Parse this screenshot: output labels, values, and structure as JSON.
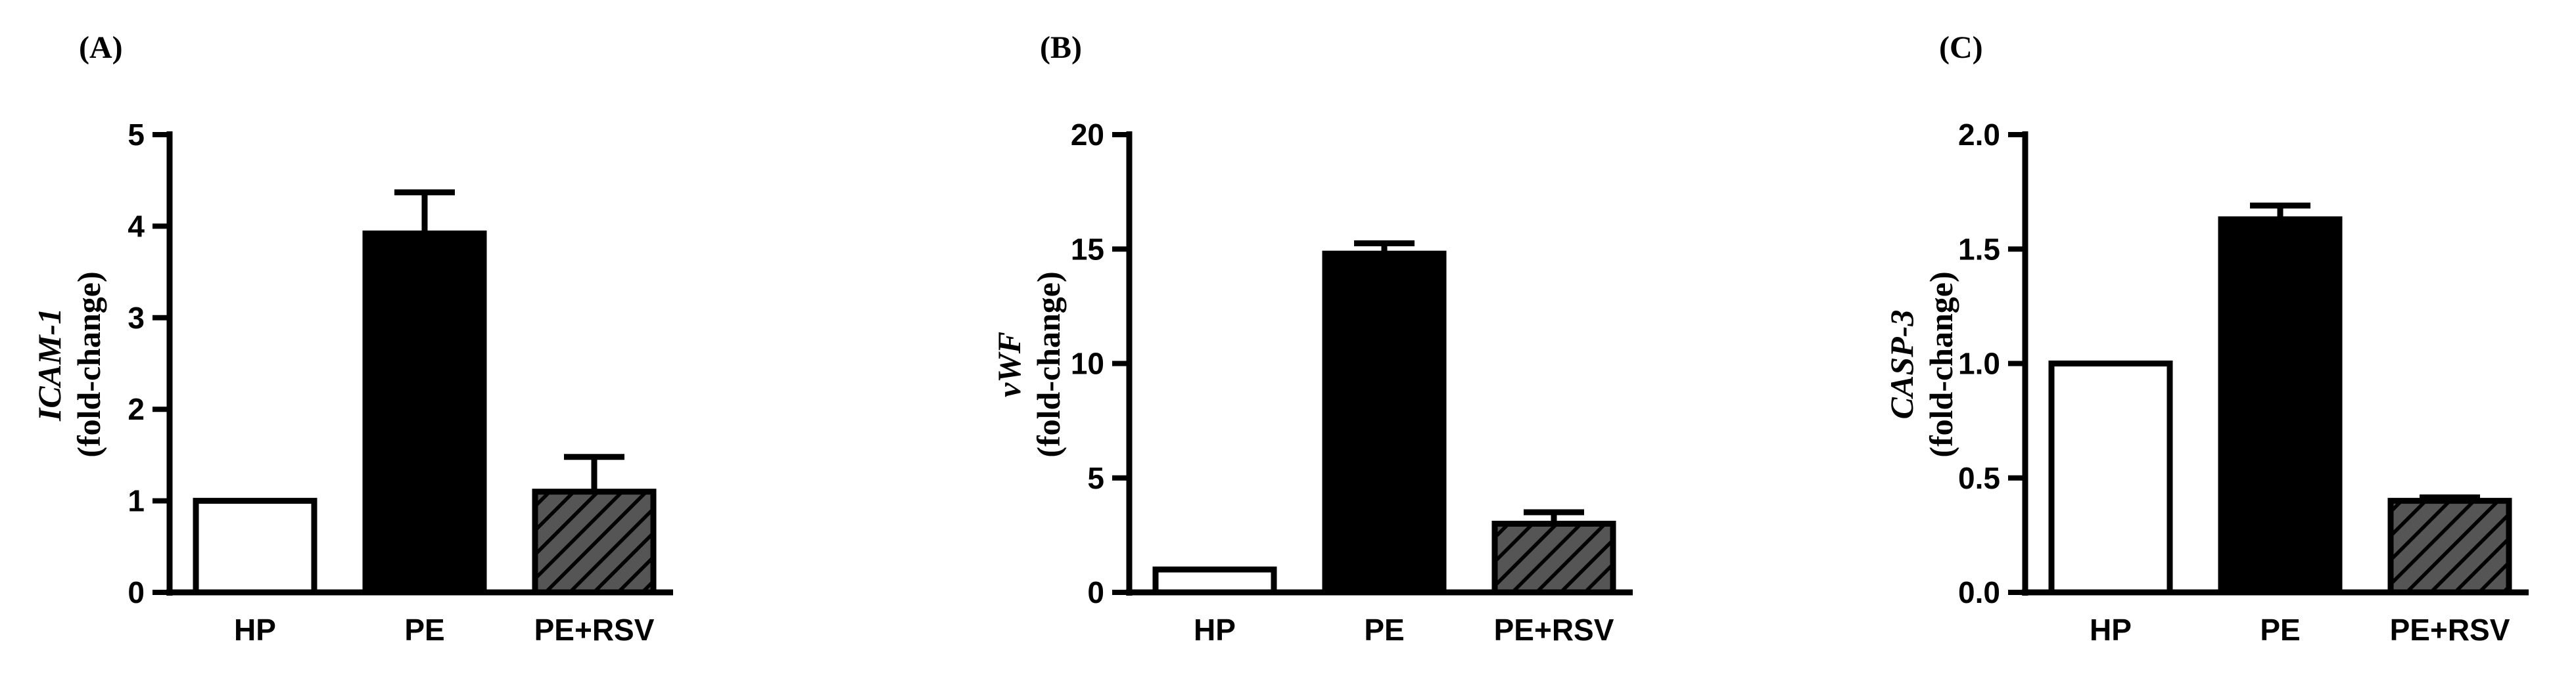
{
  "colors": {
    "axis": "#000000",
    "hp_fill": "#ffffff",
    "pe_fill": "#000000",
    "pe_rsv_fill": "#555555",
    "hatch": "#000000"
  },
  "chart_data": [
    {
      "type": "bar",
      "panel": "(A)",
      "ylabel_gene": "ICAM-1",
      "ylabel_unit": "(fold-change)",
      "categories": [
        "HP",
        "PE",
        "PE+RSV"
      ],
      "values": [
        1.0,
        3.92,
        1.1
      ],
      "errors": [
        0,
        0.45,
        0.38
      ],
      "ylim": [
        0,
        5
      ],
      "yticks": [
        0,
        1,
        2,
        3,
        4,
        5
      ],
      "ytick_labels": [
        "0",
        "1",
        "2",
        "3",
        "4",
        "5"
      ],
      "grid": false,
      "legend": "none"
    },
    {
      "type": "bar",
      "panel": "(B)",
      "ylabel_gene": "vWF",
      "ylabel_unit": "(fold-change)",
      "categories": [
        "HP",
        "PE",
        "PE+RSV"
      ],
      "values": [
        1.0,
        14.8,
        3.0
      ],
      "errors": [
        0,
        0.45,
        0.5
      ],
      "ylim": [
        0,
        20
      ],
      "yticks": [
        0,
        5,
        10,
        15,
        20
      ],
      "ytick_labels": [
        "0",
        "5",
        "10",
        "15",
        "20"
      ],
      "grid": false,
      "legend": "none"
    },
    {
      "type": "bar",
      "panel": "(C)",
      "ylabel_gene": "CASP-3",
      "ylabel_unit": "(fold-change)",
      "categories": [
        "HP",
        "PE",
        "PE+RSV"
      ],
      "values": [
        1.0,
        1.63,
        0.4
      ],
      "errors": [
        0,
        0.06,
        0.015
      ],
      "ylim": [
        0,
        2.0
      ],
      "yticks": [
        0,
        0.5,
        1.0,
        1.5,
        2.0
      ],
      "ytick_labels": [
        "0.0",
        "0.5",
        "1.0",
        "1.5",
        "2.0"
      ],
      "grid": false,
      "legend": "none"
    }
  ]
}
